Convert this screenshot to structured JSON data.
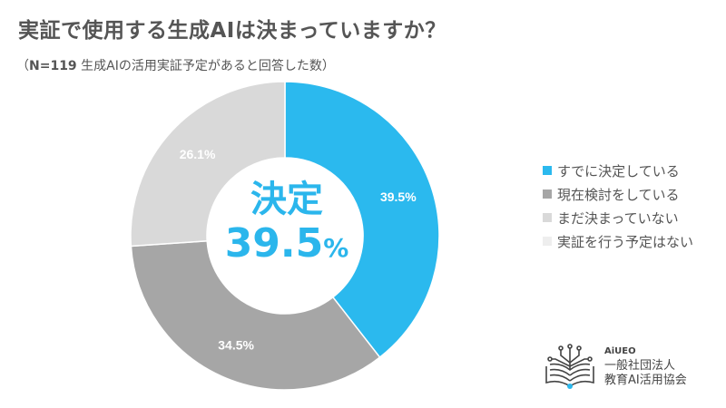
{
  "header": {
    "title": "実証で使用する生成AIは決まっていますか？",
    "subtitle_open": "（",
    "subtitle_n": "N=119",
    "subtitle_rest": " 生成AIの活用実証予定があると回答した数）"
  },
  "center": {
    "label": "決定",
    "value": "39.5",
    "unit": "%"
  },
  "logo": {
    "brand": "AiUEO",
    "line1": "一般社団法人",
    "line2": "教育AI活用協会"
  },
  "chart_data": {
    "type": "pie",
    "variant": "donut",
    "title": "実証で使用する生成AIは決まっていますか？",
    "subtitle": "（N=119 生成AIの活用実証予定があると回答した数）",
    "categories": [
      "すでに決定している",
      "現在検討をしている",
      "まだ決まっていない",
      "実証を行う予定はない"
    ],
    "values": [
      39.5,
      34.5,
      26.1,
      0
    ],
    "labels": [
      "39.5%",
      "34.5%",
      "26.1%",
      ""
    ],
    "colors": [
      "#2bb9ee",
      "#a6a6a6",
      "#d9d9d9",
      "#eeeeee"
    ],
    "center_text": "決定 39.5%",
    "legend_position": "right",
    "start_angle": "12 o'clock, clockwise"
  }
}
